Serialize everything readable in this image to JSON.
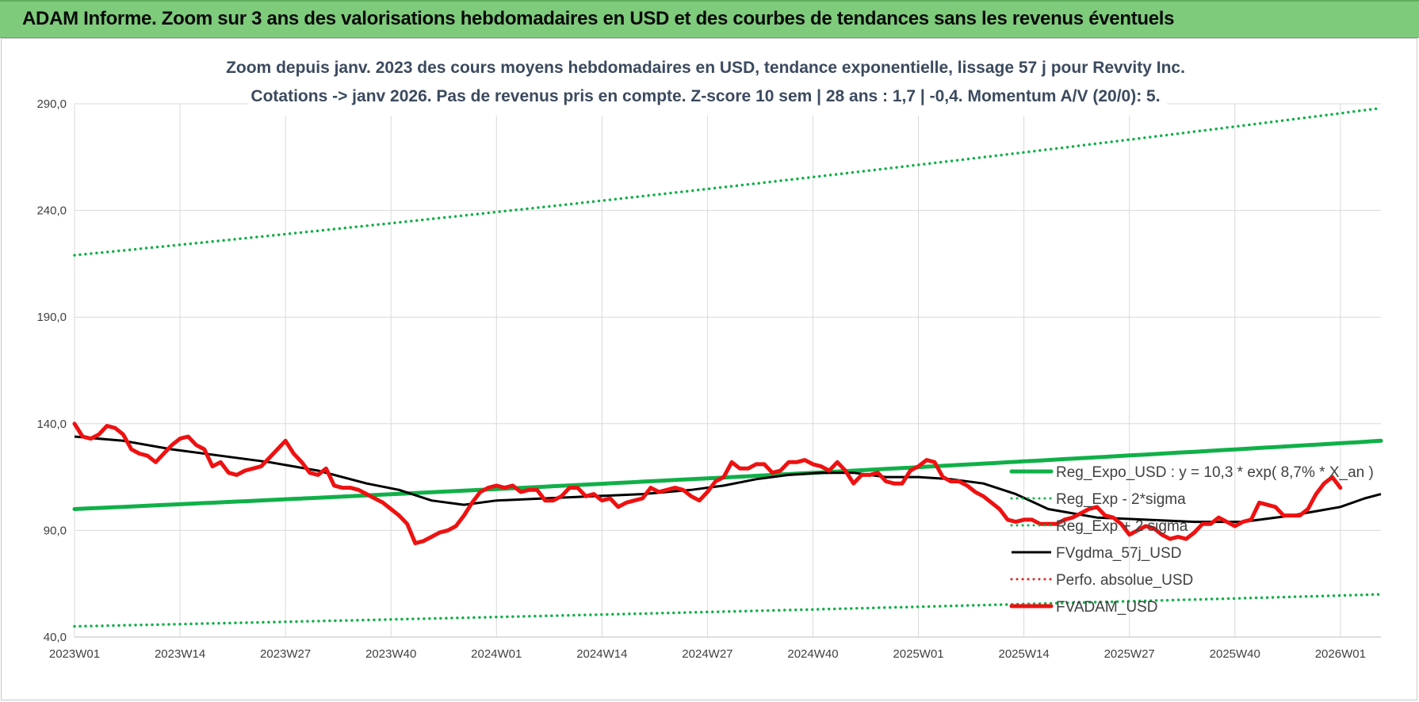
{
  "header": {
    "title": "ADAM Informe. Zoom sur 3 ans des valorisations hebdomadaires en USD et des courbes de tendances sans les revenus éventuels"
  },
  "colors": {
    "header_bg": "#7dcb7b",
    "trend": "#10b048",
    "band": "#10b048",
    "smooth": "#000000",
    "perfo": "#e02020",
    "price": "#ee1111",
    "grid": "#d9d9d9"
  },
  "chart_data": {
    "type": "line",
    "title_lines": [
      "Zoom depuis janv. 2023 des cours moyens hebdomadaires en USD, tendance exponentielle, lissage 57 j pour Revvity Inc.",
      "Cotations -> janv 2026. Pas de revenus pris en compte. Z-score 10 sem | 28 ans : 1,7 | -0,4. Momentum A/V (20/0): 5."
    ],
    "xlabel": "",
    "ylabel": "",
    "ylim": [
      40,
      290
    ],
    "y_ticks": [
      "290,0",
      "240,0",
      "190,0",
      "140,0",
      "90,0",
      "40,0"
    ],
    "y_tick_values": [
      290,
      240,
      190,
      140,
      90,
      40
    ],
    "x_tick_labels": [
      "2023W01",
      "2023W14",
      "2023W27",
      "2023W40",
      "2024W01",
      "2024W14",
      "2024W27",
      "2024W40",
      "2025W01",
      "2025W14",
      "2025W27",
      "2025W40",
      "2026W01"
    ],
    "x_tick_index": [
      0,
      13,
      26,
      39,
      52,
      65,
      78,
      91,
      104,
      117,
      130,
      143,
      156
    ],
    "x_count": 162,
    "grid": true,
    "legend_position": "lower-right",
    "series": [
      {
        "name": "Reg_Expo_USD : y = 10,3 * exp( 8,7% *  X_an )",
        "style": "solid-thick",
        "color": "#10b048",
        "start": 100,
        "end": 132
      },
      {
        "name": "Reg_Exp - 2*sigma",
        "style": "dotted",
        "color": "#10b048",
        "start": 45,
        "end": 60
      },
      {
        "name": "Reg_Exp + 2 sigma",
        "style": "dotted",
        "color": "#10b048",
        "start": 219,
        "end": 288
      },
      {
        "name": "FVgdma_57j_USD",
        "style": "solid",
        "color": "#000000",
        "points": [
          [
            0,
            134
          ],
          [
            6,
            132
          ],
          [
            12,
            128
          ],
          [
            18,
            125
          ],
          [
            24,
            122
          ],
          [
            30,
            118
          ],
          [
            36,
            112
          ],
          [
            40,
            109
          ],
          [
            44,
            104
          ],
          [
            48,
            102
          ],
          [
            52,
            104
          ],
          [
            58,
            105
          ],
          [
            64,
            106
          ],
          [
            70,
            107
          ],
          [
            76,
            109
          ],
          [
            80,
            111
          ],
          [
            84,
            114
          ],
          [
            88,
            116
          ],
          [
            92,
            117
          ],
          [
            96,
            117
          ],
          [
            100,
            115
          ],
          [
            104,
            115
          ],
          [
            108,
            114
          ],
          [
            112,
            112
          ],
          [
            116,
            107
          ],
          [
            120,
            100
          ],
          [
            126,
            96
          ],
          [
            132,
            95
          ],
          [
            138,
            94
          ],
          [
            144,
            94
          ],
          [
            150,
            97
          ],
          [
            156,
            101
          ],
          [
            159,
            105
          ],
          [
            161,
            107
          ]
        ]
      },
      {
        "name": "Perfo. absolue_USD",
        "style": "dotted",
        "color": "#e02020",
        "points": []
      },
      {
        "name": "FVADAM_USD",
        "style": "solid-thick",
        "color": "#ee1111",
        "points": [
          [
            0,
            140
          ],
          [
            1,
            134
          ],
          [
            2,
            133
          ],
          [
            3,
            135
          ],
          [
            4,
            139
          ],
          [
            5,
            138
          ],
          [
            6,
            135
          ],
          [
            7,
            128
          ],
          [
            8,
            126
          ],
          [
            9,
            125
          ],
          [
            10,
            122
          ],
          [
            11,
            126
          ],
          [
            12,
            130
          ],
          [
            13,
            133
          ],
          [
            14,
            134
          ],
          [
            15,
            130
          ],
          [
            16,
            128
          ],
          [
            17,
            120
          ],
          [
            18,
            122
          ],
          [
            19,
            117
          ],
          [
            20,
            116
          ],
          [
            21,
            118
          ],
          [
            22,
            119
          ],
          [
            23,
            120
          ],
          [
            24,
            124
          ],
          [
            25,
            128
          ],
          [
            26,
            132
          ],
          [
            27,
            126
          ],
          [
            28,
            122
          ],
          [
            29,
            117
          ],
          [
            30,
            116
          ],
          [
            31,
            119
          ],
          [
            32,
            111
          ],
          [
            33,
            110
          ],
          [
            34,
            110
          ],
          [
            35,
            109
          ],
          [
            36,
            107
          ],
          [
            37,
            105
          ],
          [
            38,
            103
          ],
          [
            39,
            100
          ],
          [
            40,
            97
          ],
          [
            41,
            93
          ],
          [
            42,
            84
          ],
          [
            43,
            85
          ],
          [
            44,
            87
          ],
          [
            45,
            89
          ],
          [
            46,
            90
          ],
          [
            47,
            92
          ],
          [
            48,
            97
          ],
          [
            49,
            103
          ],
          [
            50,
            108
          ],
          [
            51,
            110
          ],
          [
            52,
            111
          ],
          [
            53,
            110
          ],
          [
            54,
            111
          ],
          [
            55,
            108
          ],
          [
            56,
            109
          ],
          [
            57,
            109
          ],
          [
            58,
            104
          ],
          [
            59,
            104
          ],
          [
            60,
            106
          ],
          [
            61,
            110
          ],
          [
            62,
            110
          ],
          [
            63,
            106
          ],
          [
            64,
            107
          ],
          [
            65,
            104
          ],
          [
            66,
            105
          ],
          [
            67,
            101
          ],
          [
            68,
            103
          ],
          [
            69,
            104
          ],
          [
            70,
            105
          ],
          [
            71,
            110
          ],
          [
            72,
            108
          ],
          [
            73,
            109
          ],
          [
            74,
            110
          ],
          [
            75,
            109
          ],
          [
            76,
            106
          ],
          [
            77,
            104
          ],
          [
            78,
            108
          ],
          [
            79,
            113
          ],
          [
            80,
            115
          ],
          [
            81,
            122
          ],
          [
            82,
            119
          ],
          [
            83,
            119
          ],
          [
            84,
            121
          ],
          [
            85,
            121
          ],
          [
            86,
            117
          ],
          [
            87,
            118
          ],
          [
            88,
            122
          ],
          [
            89,
            122
          ],
          [
            90,
            123
          ],
          [
            91,
            121
          ],
          [
            92,
            120
          ],
          [
            93,
            118
          ],
          [
            94,
            122
          ],
          [
            95,
            118
          ],
          [
            96,
            112
          ],
          [
            97,
            116
          ],
          [
            98,
            116
          ],
          [
            99,
            117
          ],
          [
            100,
            113
          ],
          [
            101,
            112
          ],
          [
            102,
            112
          ],
          [
            103,
            118
          ],
          [
            104,
            120
          ],
          [
            105,
            123
          ],
          [
            106,
            122
          ],
          [
            107,
            115
          ],
          [
            108,
            113
          ],
          [
            109,
            113
          ],
          [
            110,
            111
          ],
          [
            111,
            108
          ],
          [
            112,
            106
          ],
          [
            113,
            103
          ],
          [
            114,
            100
          ],
          [
            115,
            95
          ],
          [
            116,
            94
          ],
          [
            117,
            95
          ],
          [
            118,
            95
          ],
          [
            119,
            93
          ],
          [
            120,
            93
          ],
          [
            121,
            93
          ],
          [
            122,
            95
          ],
          [
            123,
            96
          ],
          [
            124,
            98
          ],
          [
            125,
            100
          ],
          [
            126,
            101
          ],
          [
            127,
            97
          ],
          [
            128,
            96
          ],
          [
            129,
            93
          ],
          [
            130,
            88
          ],
          [
            131,
            90
          ],
          [
            132,
            92
          ],
          [
            133,
            91
          ],
          [
            134,
            88
          ],
          [
            135,
            86
          ],
          [
            136,
            87
          ],
          [
            137,
            86
          ],
          [
            138,
            89
          ],
          [
            139,
            93
          ],
          [
            140,
            93
          ],
          [
            141,
            96
          ],
          [
            142,
            94
          ],
          [
            143,
            92
          ],
          [
            144,
            94
          ],
          [
            145,
            95
          ],
          [
            146,
            103
          ],
          [
            147,
            102
          ],
          [
            148,
            101
          ],
          [
            149,
            97
          ],
          [
            150,
            97
          ],
          [
            151,
            97
          ],
          [
            152,
            100
          ],
          [
            153,
            107
          ],
          [
            154,
            112
          ],
          [
            155,
            115
          ],
          [
            156,
            110
          ]
        ]
      }
    ]
  }
}
